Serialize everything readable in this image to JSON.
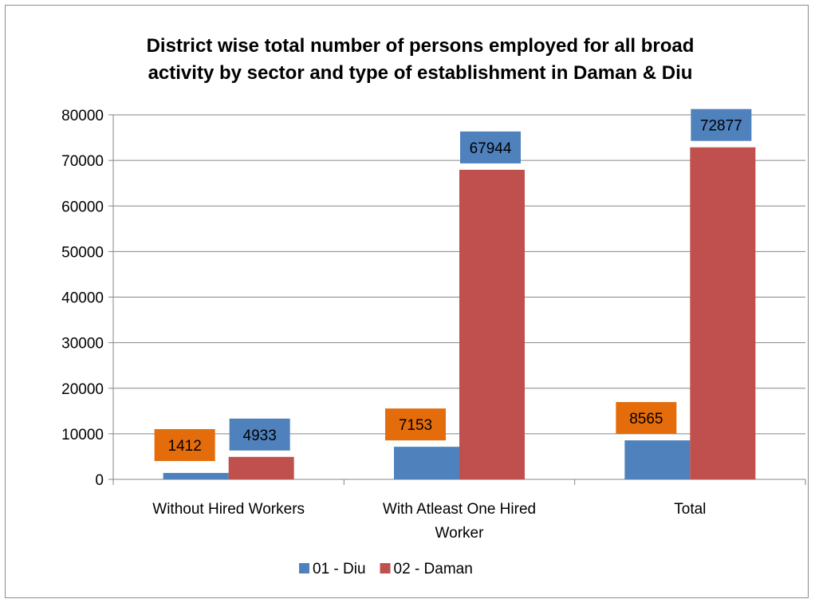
{
  "chart_data": {
    "type": "bar",
    "title": "District wise total number of persons employed for all broad activity by sector and type of establishment in Daman & Diu",
    "title_lines": [
      "District wise total number of persons employed for all broad",
      "activity by sector and type of establishment in Daman & Diu"
    ],
    "categories": [
      "Without Hired Workers",
      "With Atleast One Hired Worker",
      "Total"
    ],
    "category_label_lines": [
      [
        "Without Hired Workers"
      ],
      [
        "With Atleast One  Hired",
        "Worker"
      ],
      [
        "Total"
      ]
    ],
    "series": [
      {
        "name": "01 - Diu",
        "values": [
          1412,
          7153,
          8565
        ],
        "color": "#4f81bd",
        "label_bg": "#e46c0a"
      },
      {
        "name": "02 - Daman",
        "values": [
          4933,
          67944,
          72877
        ],
        "color": "#c0504d",
        "label_bg": "#4f81bd"
      }
    ],
    "yticks": [
      0,
      10000,
      20000,
      30000,
      40000,
      50000,
      60000,
      70000,
      80000
    ],
    "ylim": [
      0,
      80000
    ],
    "xlabel": "",
    "ylabel": "",
    "grid": true,
    "legend": "bottom"
  }
}
